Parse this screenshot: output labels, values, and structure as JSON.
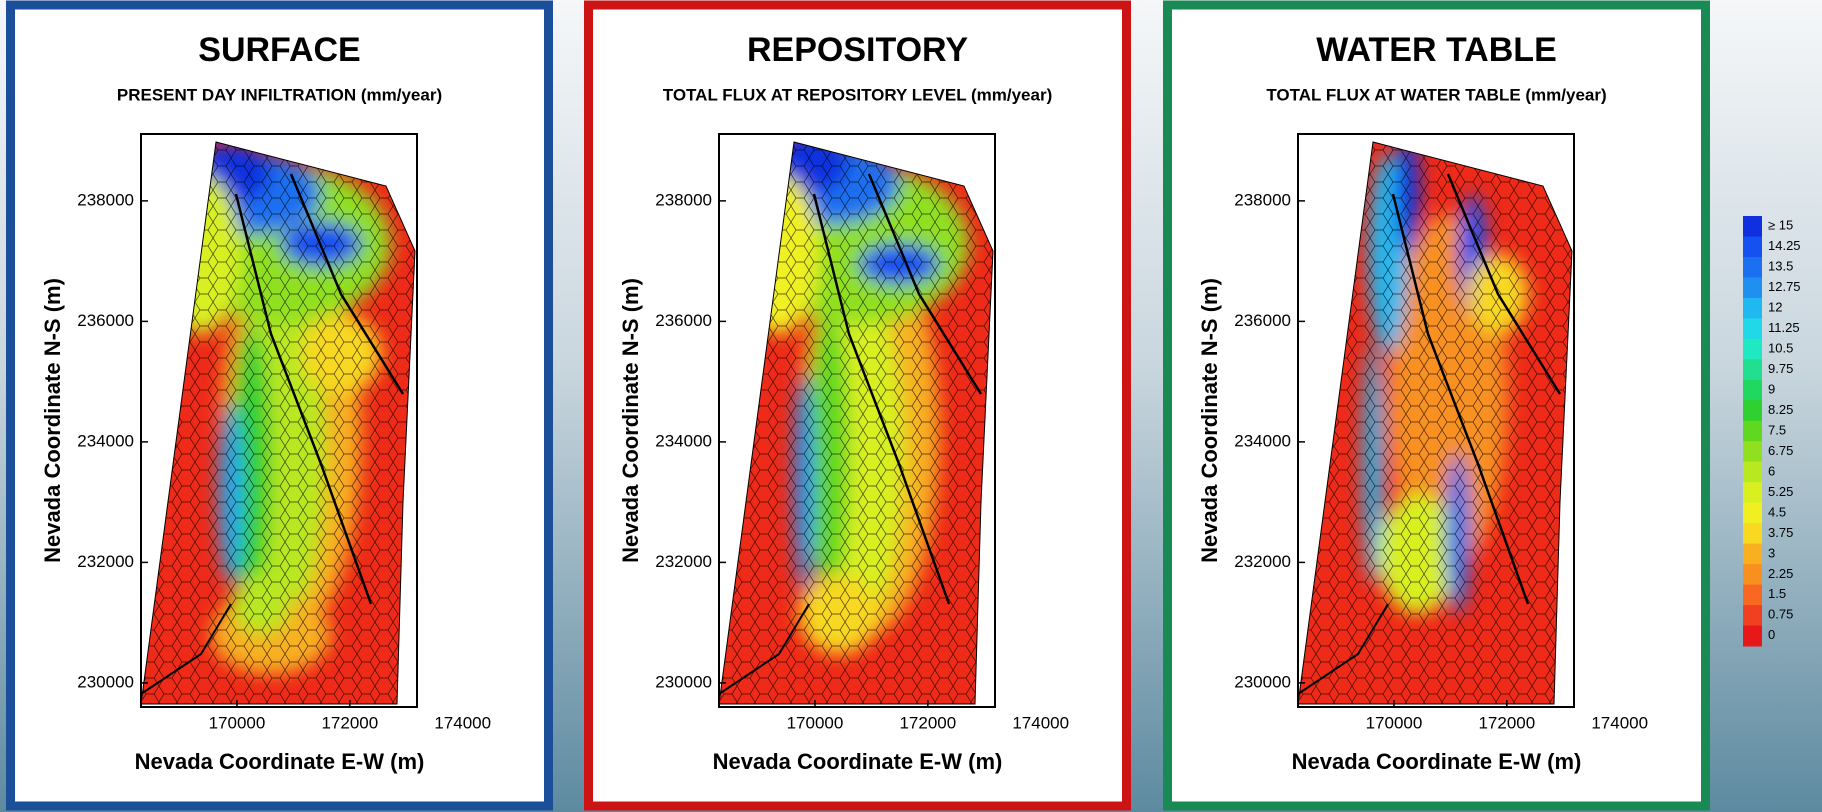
{
  "panels": [
    {
      "title": "SURFACE",
      "subtitle": "PRESENT DAY INFILTRATION  (mm/year)",
      "x_label": "Nevada Coordinate E-W (m)",
      "y_label": "Nevada Coordinate N-S (m)",
      "xlim": [
        168300,
        173190
      ],
      "ylim": [
        229600,
        239110
      ],
      "xticks": [
        170000,
        172000,
        174000
      ],
      "yticks": [
        230000,
        232000,
        234000,
        236000,
        238000
      ],
      "border_color": "#1b4f9a"
    },
    {
      "title": "REPOSITORY",
      "subtitle": "TOTAL FLUX AT REPOSITORY LEVEL (mm/year)",
      "x_label": "Nevada Coordinate E-W (m)",
      "y_label": "Nevada Coordinate N-S (m)",
      "xlim": [
        168300,
        173190
      ],
      "ylim": [
        229600,
        239110
      ],
      "xticks": [
        170000,
        172000,
        174000
      ],
      "yticks": [
        230000,
        232000,
        234000,
        236000,
        238000
      ],
      "border_color": "#cc1414"
    },
    {
      "title": "WATER TABLE",
      "subtitle": "TOTAL FLUX AT WATER TABLE (mm/year)",
      "x_label": "Nevada Coordinate E-W (m)",
      "y_label": "Nevada Coordinate N-S (m)",
      "xlim": [
        168300,
        173190
      ],
      "ylim": [
        229600,
        239110
      ],
      "xticks": [
        170000,
        172000,
        174000
      ],
      "yticks": [
        230000,
        232000,
        234000,
        236000,
        238000
      ],
      "border_color": "#1a8a55"
    }
  ],
  "legend": {
    "entries": [
      {
        "label": "≥ 15",
        "color": "#1030e0"
      },
      {
        "label": "14.25",
        "color": "#1550f0"
      },
      {
        "label": "13.5",
        "color": "#1a70f0"
      },
      {
        "label": "12.75",
        "color": "#2090f0"
      },
      {
        "label": "12",
        "color": "#20b8f0"
      },
      {
        "label": "11.25",
        "color": "#20d8e8"
      },
      {
        "label": "10.5",
        "color": "#20e8c0"
      },
      {
        "label": "9.75",
        "color": "#20e090"
      },
      {
        "label": "9",
        "color": "#20d860"
      },
      {
        "label": "8.25",
        "color": "#30d030"
      },
      {
        "label": "7.5",
        "color": "#60d820"
      },
      {
        "label": "6.75",
        "color": "#90e020"
      },
      {
        "label": "6",
        "color": "#b8e820"
      },
      {
        "label": "5.25",
        "color": "#d8f020"
      },
      {
        "label": "4.5",
        "color": "#f0f020"
      },
      {
        "label": "3.75",
        "color": "#f8d820"
      },
      {
        "label": "3",
        "color": "#f8b020"
      },
      {
        "label": "2.25",
        "color": "#f89020"
      },
      {
        "label": "1.5",
        "color": "#f86820"
      },
      {
        "label": "0.75",
        "color": "#f04020"
      },
      {
        "label": "0",
        "color": "#e81818"
      }
    ]
  }
}
